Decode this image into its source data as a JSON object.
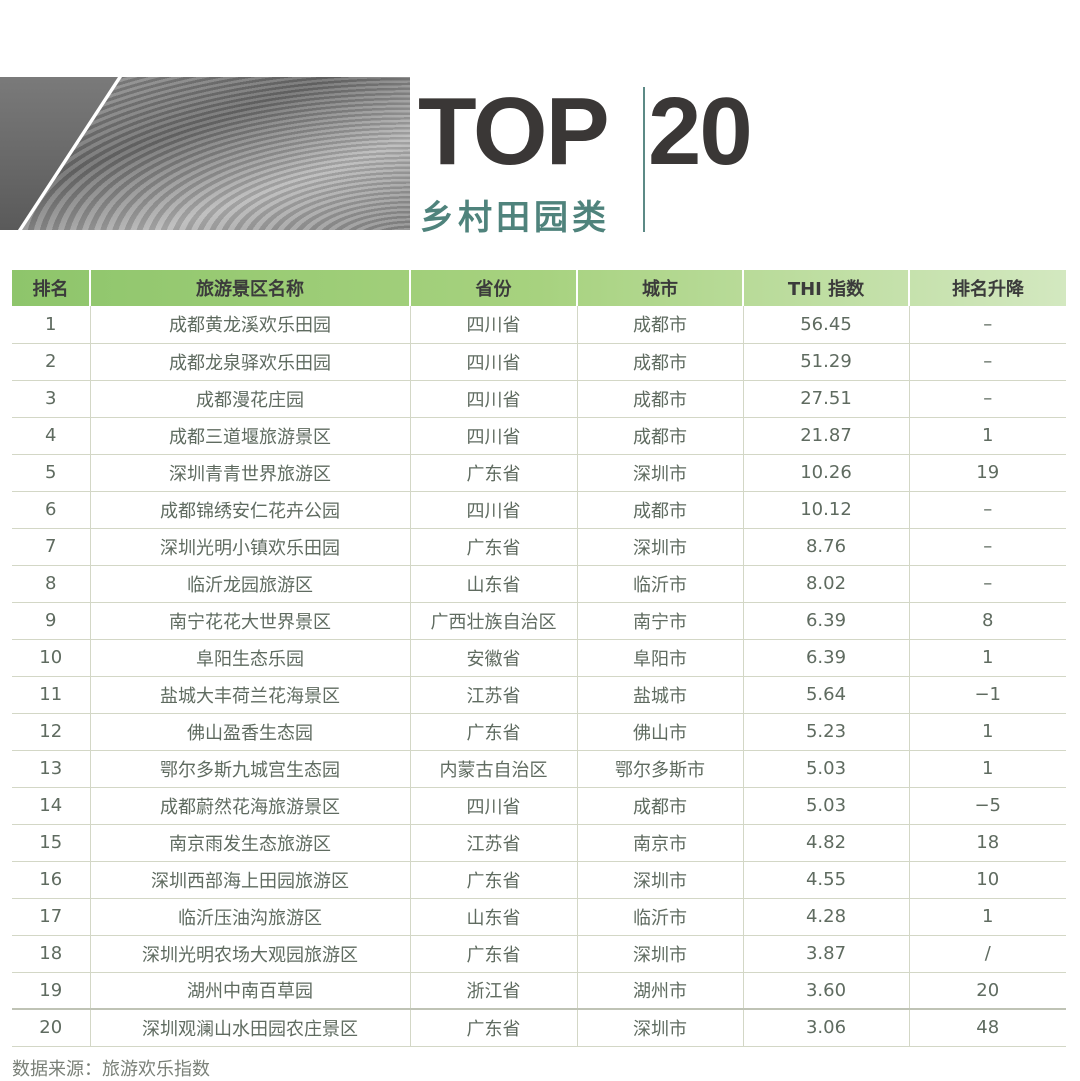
{
  "header": {
    "title_left": "TOP",
    "title_right": "20",
    "subtitle": "乡村田园类"
  },
  "table": {
    "columns": [
      "排名",
      "旅游景区名称",
      "省份",
      "城市",
      "THI 指数",
      "排名升降"
    ],
    "rows": [
      [
        "1",
        "成都黄龙溪欢乐田园",
        "四川省",
        "成都市",
        "56.45",
        "–"
      ],
      [
        "2",
        "成都龙泉驿欢乐田园",
        "四川省",
        "成都市",
        "51.29",
        "–"
      ],
      [
        "3",
        "成都漫花庄园",
        "四川省",
        "成都市",
        "27.51",
        "–"
      ],
      [
        "4",
        "成都三道堰旅游景区",
        "四川省",
        "成都市",
        "21.87",
        "1"
      ],
      [
        "5",
        "深圳青青世界旅游区",
        "广东省",
        "深圳市",
        "10.26",
        "19"
      ],
      [
        "6",
        "成都锦绣安仁花卉公园",
        "四川省",
        "成都市",
        "10.12",
        "–"
      ],
      [
        "7",
        "深圳光明小镇欢乐田园",
        "广东省",
        "深圳市",
        "8.76",
        "–"
      ],
      [
        "8",
        "临沂龙园旅游区",
        "山东省",
        "临沂市",
        "8.02",
        "–"
      ],
      [
        "9",
        "南宁花花大世界景区",
        "广西壮族自治区",
        "南宁市",
        "6.39",
        "8"
      ],
      [
        "10",
        "阜阳生态乐园",
        "安徽省",
        "阜阳市",
        "6.39",
        "1"
      ],
      [
        "11",
        "盐城大丰荷兰花海景区",
        "江苏省",
        "盐城市",
        "5.64",
        "−1"
      ],
      [
        "12",
        "佛山盈香生态园",
        "广东省",
        "佛山市",
        "5.23",
        "1"
      ],
      [
        "13",
        "鄂尔多斯九城宫生态园",
        "内蒙古自治区",
        "鄂尔多斯市",
        "5.03",
        "1"
      ],
      [
        "14",
        "成都蔚然花海旅游景区",
        "四川省",
        "成都市",
        "5.03",
        "−5"
      ],
      [
        "15",
        "南京雨发生态旅游区",
        "江苏省",
        "南京市",
        "4.82",
        "18"
      ],
      [
        "16",
        "深圳西部海上田园旅游区",
        "广东省",
        "深圳市",
        "4.55",
        "10"
      ],
      [
        "17",
        "临沂压油沟旅游区",
        "山东省",
        "临沂市",
        "4.28",
        "1"
      ],
      [
        "18",
        "深圳光明农场大观园旅游区",
        "广东省",
        "深圳市",
        "3.87",
        "/"
      ],
      [
        "19",
        "湖州中南百草园",
        "浙江省",
        "湖州市",
        "3.60",
        "20"
      ],
      [
        "20",
        "深圳观澜山水田园农庄景区",
        "广东省",
        "深圳市",
        "3.06",
        "48"
      ]
    ]
  },
  "footer": {
    "source": "数据来源：旅游欢乐指数"
  },
  "colors": {
    "header_green": "#8ec56b",
    "title": "#3a3736",
    "subtitle": "#4f837c"
  }
}
